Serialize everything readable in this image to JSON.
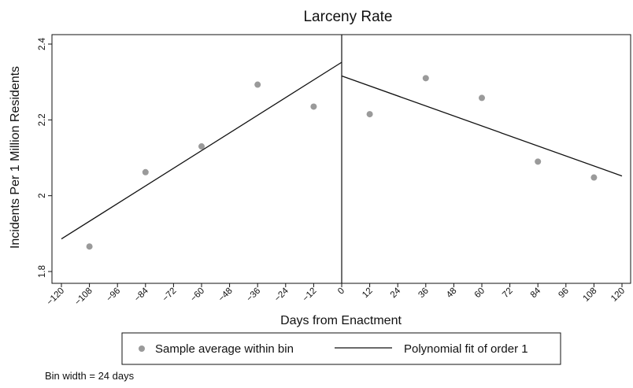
{
  "chart_data": {
    "type": "scatter",
    "title": "Larceny Rate",
    "xlabel": "Days from Enactment",
    "ylabel": "Incidents Per 1 Million Residents",
    "xlim": [
      -120,
      120
    ],
    "ylim": [
      1.8,
      2.4
    ],
    "x_ticks": [
      -120,
      -108,
      -96,
      -84,
      -72,
      -60,
      -48,
      -36,
      -24,
      -12,
      0,
      12,
      24,
      36,
      48,
      60,
      72,
      84,
      96,
      108,
      120
    ],
    "x_tick_labels": [
      "−120",
      "−108",
      "−96",
      "−84",
      "−72",
      "−60",
      "−48",
      "−36",
      "−24",
      "−12",
      "0",
      "12",
      "24",
      "36",
      "48",
      "60",
      "72",
      "84",
      "96",
      "108",
      "120"
    ],
    "y_ticks": [
      1.8,
      2,
      2.2,
      2.4
    ],
    "y_tick_labels": [
      "1.8",
      "2",
      "2.2",
      "2.4"
    ],
    "cutoff": 0,
    "grid": false,
    "series": [
      {
        "name": "Sample average within bin",
        "kind": "scatter",
        "color": "#9a9a9a",
        "points": [
          {
            "x": -108,
            "y": 1.866
          },
          {
            "x": -84,
            "y": 2.062
          },
          {
            "x": -60,
            "y": 2.13
          },
          {
            "x": -36,
            "y": 2.293
          },
          {
            "x": -12,
            "y": 2.235
          },
          {
            "x": 12,
            "y": 2.215
          },
          {
            "x": 36,
            "y": 2.31
          },
          {
            "x": 60,
            "y": 2.258
          },
          {
            "x": 84,
            "y": 2.09
          },
          {
            "x": 108,
            "y": 2.048
          }
        ]
      },
      {
        "name": "Polynomial fit of order 1",
        "kind": "line",
        "color": "#111111",
        "segments": [
          [
            {
              "x": -120,
              "y": 1.886
            },
            {
              "x": 0,
              "y": 2.352
            }
          ],
          [
            {
              "x": 0,
              "y": 2.316
            },
            {
              "x": 120,
              "y": 2.052
            }
          ]
        ]
      }
    ],
    "legend": {
      "position": "bottom",
      "entries": [
        "Sample average within bin",
        "Polynomial fit of order 1"
      ]
    },
    "note": "Bin width = 24 days"
  }
}
